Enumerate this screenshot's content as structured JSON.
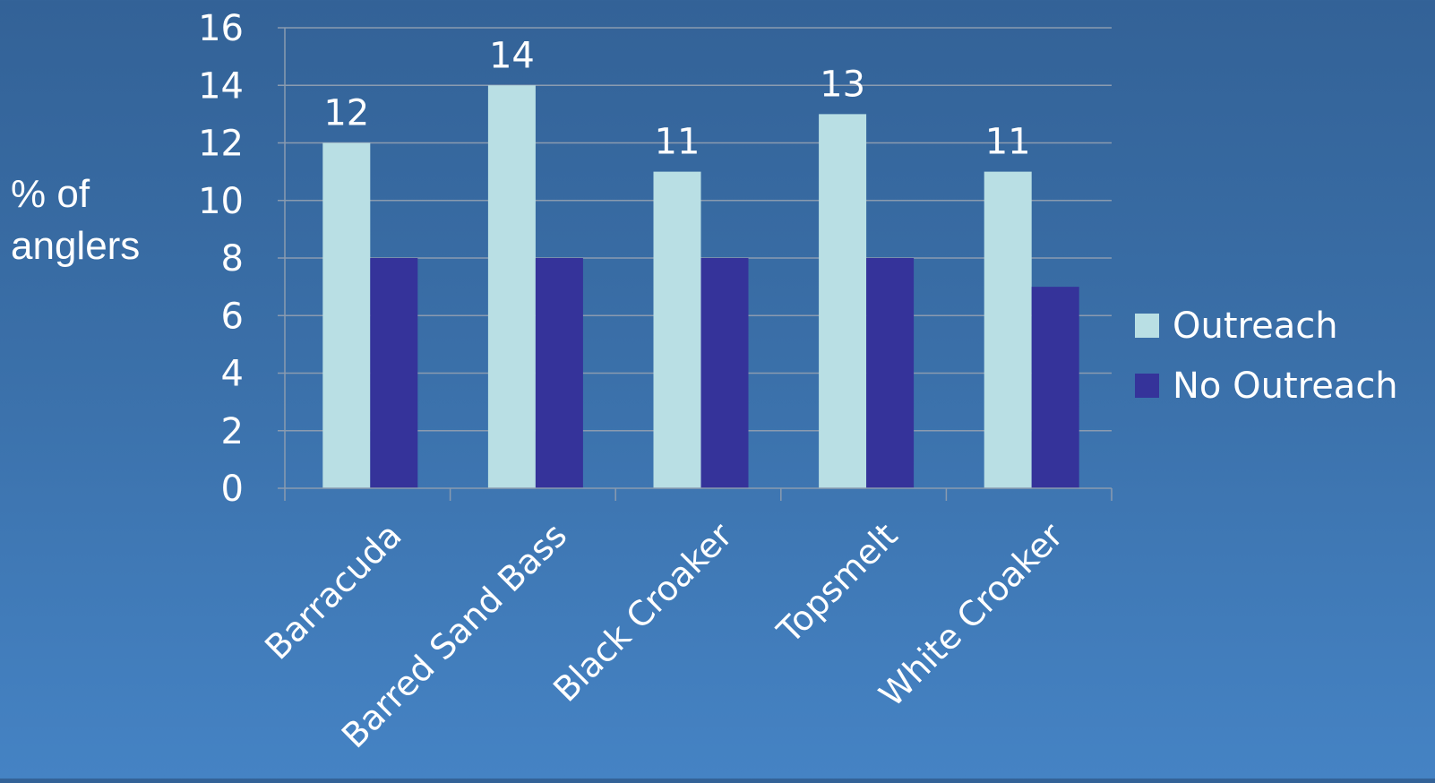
{
  "chart_data": {
    "type": "bar",
    "title": "",
    "xlabel": "",
    "ylabel": "% of\nanglers",
    "categories": [
      "Barracuda",
      "Barred Sand Bass",
      "Black Croaker",
      "Topsmelt",
      "White Croaker"
    ],
    "series": [
      {
        "name": "Outreach",
        "values": [
          12,
          14,
          11,
          13,
          11
        ],
        "color": "#b9dfe4",
        "data_labels": true
      },
      {
        "name": "No Outreach",
        "values": [
          8,
          8,
          8,
          8,
          7
        ],
        "color": "#35339a",
        "data_labels": false
      }
    ],
    "ylim": [
      0,
      16
    ],
    "yticks": [
      0,
      2,
      4,
      6,
      8,
      10,
      12,
      14,
      16
    ],
    "grid": true,
    "legend_position": "right",
    "colors": {
      "background_top": "#336297",
      "background_bottom": "#4583c4",
      "gridline": "#8a9bb0",
      "text": "#ffffff"
    }
  }
}
